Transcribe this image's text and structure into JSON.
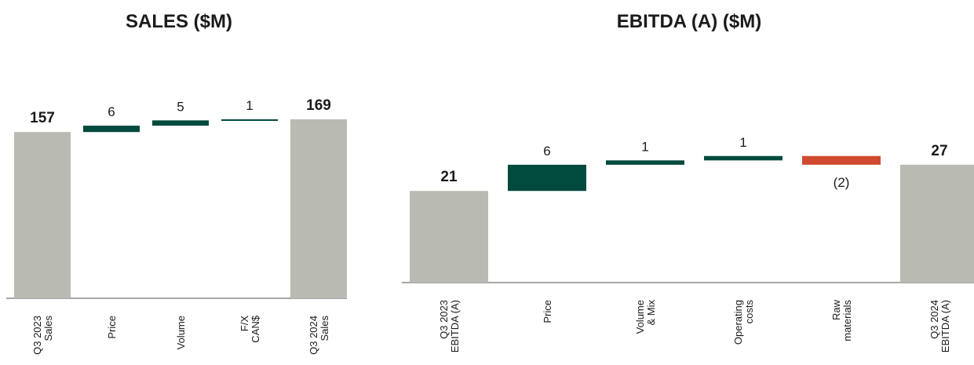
{
  "colors": {
    "total": "#b9bab1",
    "increase": "#004a3e",
    "decrease": "#cf4a2f",
    "axis": "#888888",
    "text": "#1a1a1a"
  },
  "chart_data": [
    {
      "type": "bar",
      "subtype": "waterfall",
      "title": "SALES ($M)",
      "categories": [
        [
          "Q3 2023",
          "Sales"
        ],
        [
          "Price"
        ],
        [
          "Volume"
        ],
        [
          "F/X",
          "CAN$"
        ],
        [
          "Q3 2024",
          "Sales"
        ]
      ],
      "values": [
        157,
        6,
        5,
        1,
        169
      ],
      "value_labels": [
        "157",
        "6",
        "5",
        "1",
        "169"
      ],
      "kinds": [
        "total",
        "increase",
        "increase",
        "increase",
        "total"
      ],
      "ylim": [
        0,
        200
      ]
    },
    {
      "type": "bar",
      "subtype": "waterfall",
      "title": "EBITDA (A) ($M)",
      "categories": [
        [
          "Q3 2023",
          "EBITDA (A)"
        ],
        [
          "Price"
        ],
        [
          "Volume",
          "& Mix"
        ],
        [
          "Operating",
          "costs"
        ],
        [
          "Raw",
          "materials"
        ],
        [
          "Q3 2024",
          "EBITDA (A)"
        ]
      ],
      "values": [
        21,
        6,
        1,
        1,
        -2,
        27
      ],
      "value_labels": [
        "21",
        "6",
        "1",
        "1",
        "(2)",
        "27"
      ],
      "kinds": [
        "total",
        "increase",
        "increase",
        "increase",
        "decrease",
        "total"
      ],
      "ylim": [
        0,
        35
      ]
    }
  ]
}
